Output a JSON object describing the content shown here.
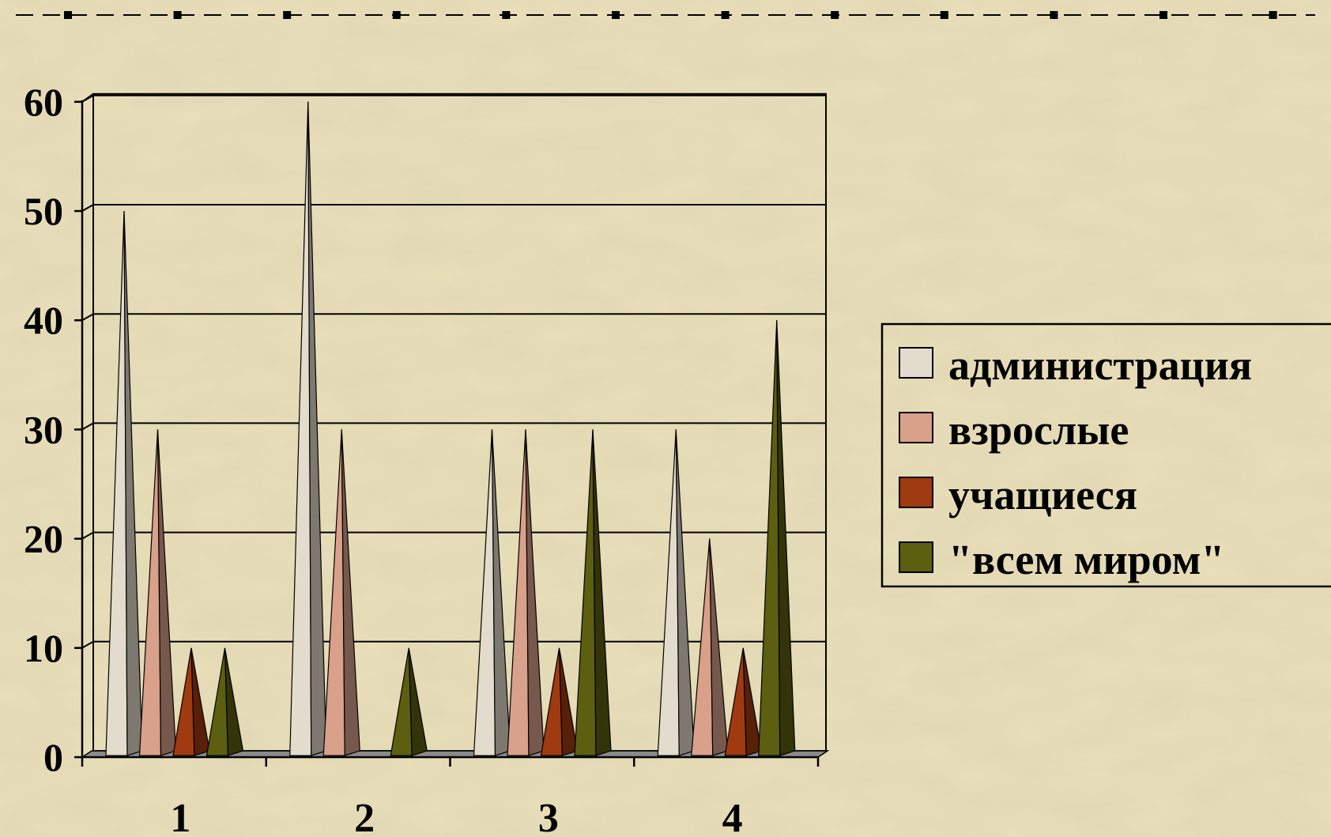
{
  "chart_data": {
    "type": "bar",
    "style": "3d-cone",
    "categories": [
      "1",
      "2",
      "3",
      "4"
    ],
    "series": [
      {
        "name": "администрация",
        "color": "#e3dccd",
        "values": [
          50,
          60,
          30,
          30
        ]
      },
      {
        "name": "взрослые",
        "color": "#d9a08a",
        "values": [
          30,
          30,
          30,
          20
        ]
      },
      {
        "name": "учащиеся",
        "color": "#a03a10",
        "values": [
          10,
          0,
          10,
          10
        ]
      },
      {
        "name": "\"всем миром\"",
        "color": "#5c5e10",
        "values": [
          10,
          10,
          30,
          40
        ]
      }
    ],
    "ylim": [
      0,
      60
    ],
    "yticks": [
      "0",
      "10",
      "20",
      "30",
      "40",
      "50",
      "60"
    ],
    "grid": true,
    "legend": "right",
    "title": "",
    "xlabel": "",
    "ylabel": ""
  },
  "colors": {
    "background": "#e9dfb9",
    "gridline": "#000000",
    "floor": "#8a8a8a"
  }
}
